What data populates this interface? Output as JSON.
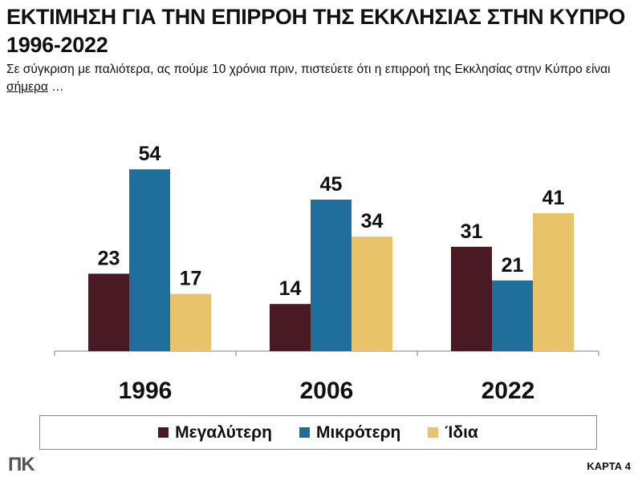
{
  "title": "ΕΚΤΙΜΗΣΗ ΓΙΑ ΤΗΝ ΕΠΙΡΡΟΗ ΤΗΣ ΕΚΚΛΗΣΙΑΣ ΣΤΗΝ ΚΥΠΡΟ 1996-2022",
  "subtitle_main": "Σε σύγκριση με παλιότερα, ας πούμε 10 χρόνια πριν, πιστεύετε ότι η επιρροή της Εκκλησίας στην Κύπρο είναι ",
  "subtitle_emph": "σήμερα",
  "subtitle_end": " …",
  "logo": "ΠΚ",
  "card_label": "ΚΑΡΤΑ 4",
  "chart_data": {
    "type": "bar",
    "categories": [
      "1996",
      "2006",
      "2022"
    ],
    "series": [
      {
        "name": "Μεγαλύτερη",
        "color": "#4a1a24",
        "values": [
          23,
          14,
          31
        ]
      },
      {
        "name": "Μικρότερη",
        "color": "#1f6e9c",
        "values": [
          54,
          45,
          21
        ]
      },
      {
        "name": "Ίδια",
        "color": "#e8c36a",
        "values": [
          17,
          34,
          41
        ]
      }
    ],
    "ylim": [
      0,
      60
    ],
    "grid": false,
    "legend": "bottom"
  }
}
